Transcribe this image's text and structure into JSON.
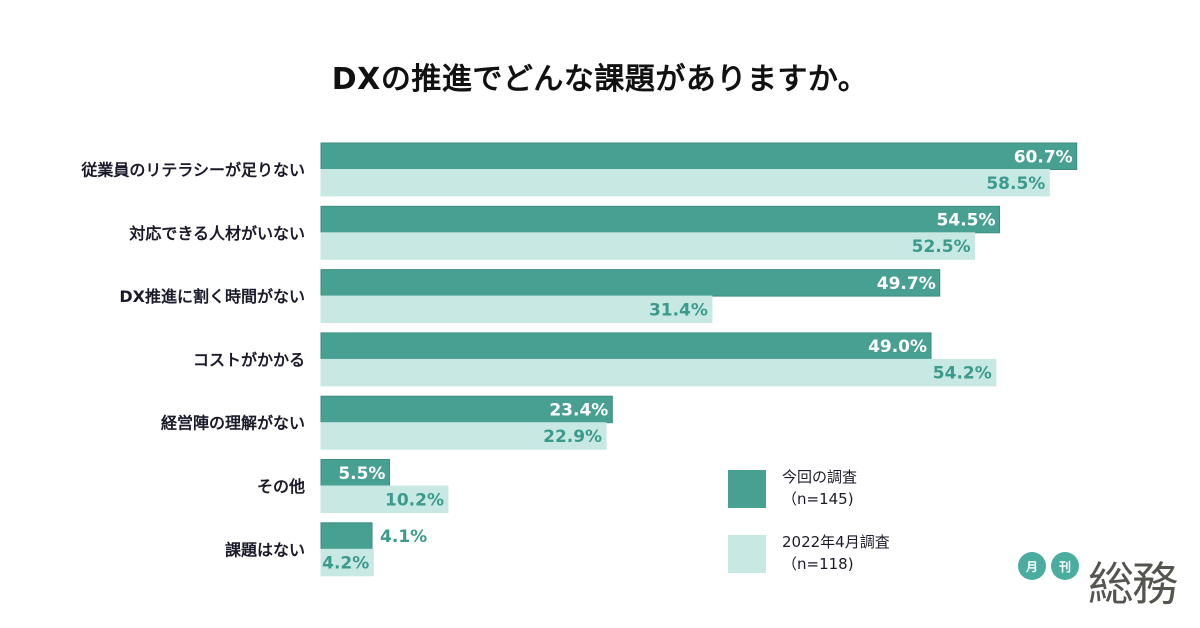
{
  "chart_data": {
    "type": "bar",
    "orientation": "horizontal",
    "title": "DXの推進でどんな課題がありますか。",
    "categories": [
      "従業員のリテラシーが足りない",
      "対応できる人材がいない",
      "DX推進に割く時間がない",
      "コストがかかる",
      "経営陣の理解がない",
      "その他",
      "課題はない"
    ],
    "series": [
      {
        "name": "今回の調査",
        "sample": "（n=145)",
        "color": "#48a093",
        "values": [
          60.7,
          54.5,
          49.7,
          49.0,
          23.4,
          5.5,
          4.1
        ],
        "labels": [
          "60.7%",
          "54.5%",
          "49.7%",
          "49.0%",
          "23.4%",
          "5.5%",
          "4.1%"
        ]
      },
      {
        "name": "2022年4月調査",
        "sample": "（n=118)",
        "color": "#c8e8e4",
        "values": [
          58.5,
          52.5,
          31.4,
          54.2,
          22.9,
          10.2,
          4.2
        ],
        "labels": [
          "58.5%",
          "52.5%",
          "31.4%",
          "54.2%",
          "22.9%",
          "10.2%",
          "4.2%"
        ]
      }
    ],
    "xlim": [
      0,
      70
    ],
    "unit": "%",
    "legend_position": "bottom-right",
    "grid": false
  },
  "logo": {
    "circle1": "月",
    "circle2": "刊",
    "main": "総務"
  }
}
